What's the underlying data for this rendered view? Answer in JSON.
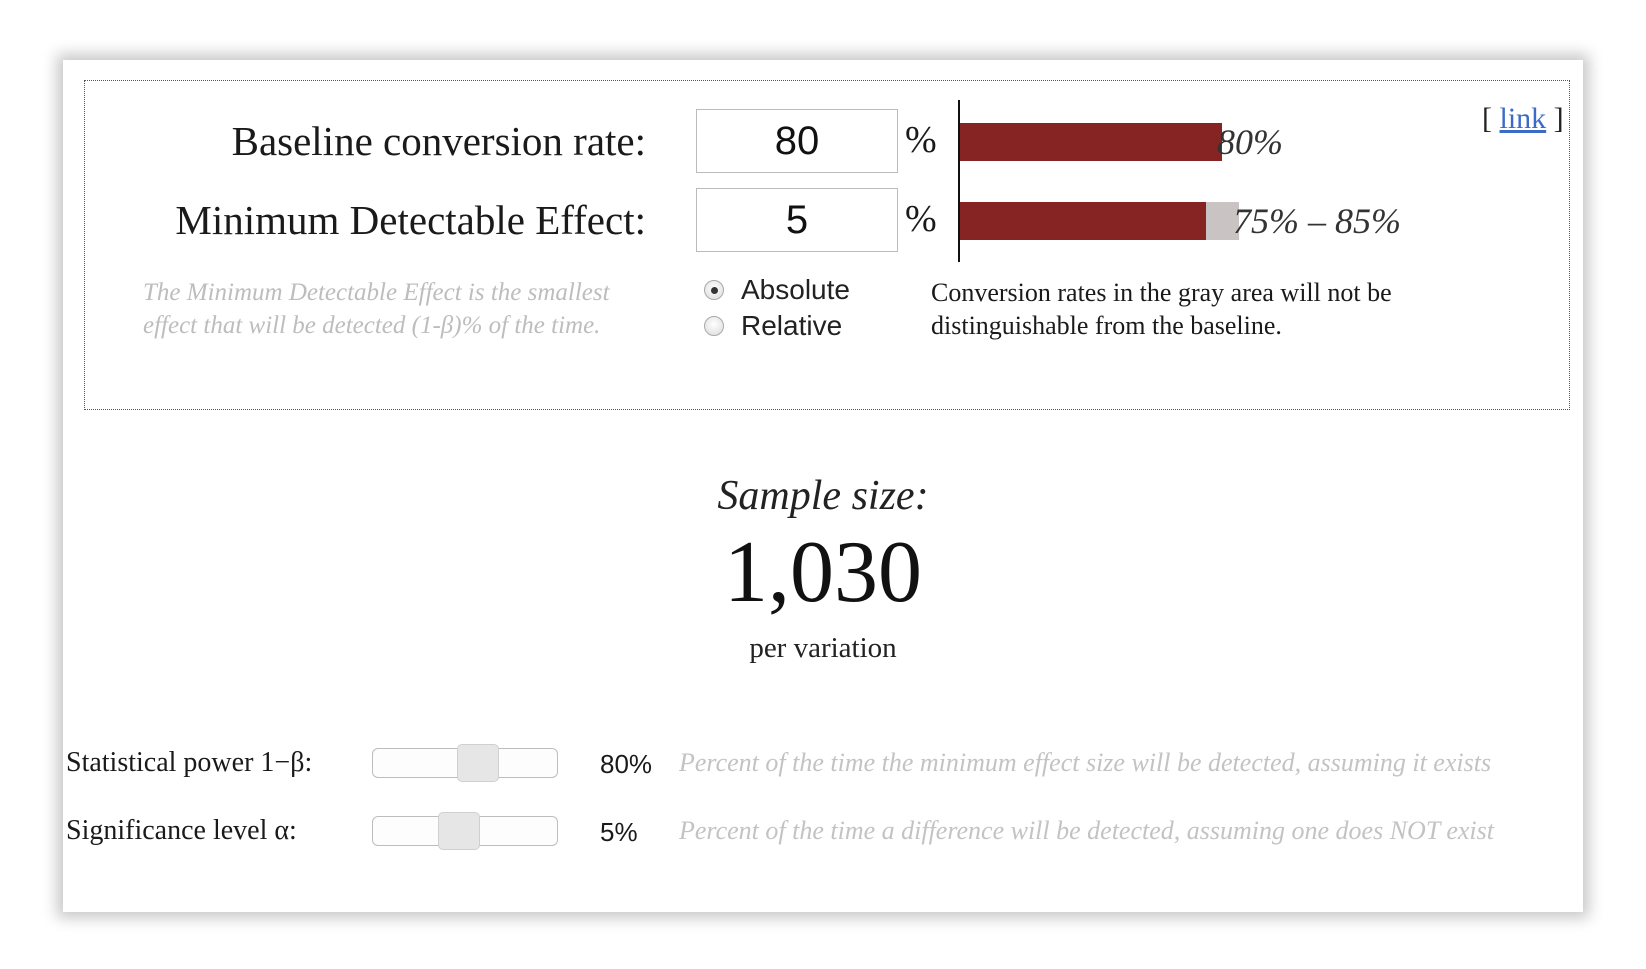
{
  "inputs_panel": {
    "link_open": "[",
    "link_text": "link",
    "link_close": "]",
    "baseline": {
      "label": "Baseline conversion rate:",
      "value": "80",
      "unit": "%",
      "bar_fraction": 0.8,
      "bar_value": "80%"
    },
    "mde": {
      "label": "Minimum Detectable Effect:",
      "value": "5",
      "unit": "%",
      "range_low_fraction": 0.75,
      "range_high_fraction": 0.85,
      "bar_value": "75% – 85%"
    },
    "help_text": "The Minimum Detectable Effect is the smallest effect that will be detected (1-β)% of the time.",
    "mode_options": [
      {
        "label": "Absolute",
        "selected": true
      },
      {
        "label": "Relative",
        "selected": false
      }
    ],
    "note": "Conversion rates in the gray area will not be distinguishable from the baseline.",
    "colors": {
      "bar": "#862424",
      "gray_zone": "#c9c3c3"
    }
  },
  "result": {
    "label": "Sample size:",
    "value": "1,030",
    "sub_label": "per variation"
  },
  "settings": {
    "power": {
      "label": "Statistical power 1−β:",
      "value": "80%",
      "slider_fraction": 0.58,
      "description": "Percent of the time the minimum effect size will be detected, assuming it exists"
    },
    "significance": {
      "label": "Significance level α:",
      "value": "5%",
      "slider_fraction": 0.45,
      "description": "Percent of the time a difference will be detected, assuming one does NOT exist"
    }
  }
}
